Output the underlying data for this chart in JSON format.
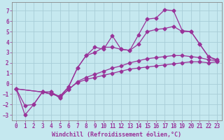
{
  "xlabel": "Windchill (Refroidissement éolien,°C)",
  "xlim": [
    -0.5,
    23.5
  ],
  "ylim": [
    -3.5,
    7.8
  ],
  "xticks": [
    0,
    1,
    2,
    3,
    4,
    5,
    6,
    7,
    8,
    9,
    10,
    11,
    12,
    13,
    14,
    15,
    16,
    17,
    18,
    19,
    20,
    21,
    22,
    23
  ],
  "yticks": [
    -3,
    -2,
    -1,
    0,
    1,
    2,
    3,
    4,
    5,
    6,
    7
  ],
  "bg_color": "#c5e8ef",
  "line_color": "#993399",
  "grid_color": "#a8cdd8",
  "lines": [
    {
      "x": [
        0,
        1,
        2,
        3,
        4,
        5,
        6,
        7,
        8,
        9,
        10,
        11,
        12,
        13,
        14,
        15,
        16,
        17,
        18,
        19,
        20,
        21,
        22,
        23
      ],
      "y": [
        -0.5,
        -3.0,
        -2.0,
        -0.8,
        -0.8,
        -1.4,
        -0.5,
        0.1,
        0.4,
        0.6,
        0.8,
        1.0,
        1.2,
        1.4,
        1.5,
        1.6,
        1.7,
        1.8,
        1.9,
        2.0,
        2.1,
        2.1,
        2.0,
        2.1
      ]
    },
    {
      "x": [
        0,
        1,
        2,
        3,
        4,
        5,
        6,
        7,
        8,
        9,
        10,
        11,
        12,
        13,
        14,
        15,
        16,
        17,
        18,
        19,
        20,
        21,
        22,
        23
      ],
      "y": [
        -0.5,
        -2.1,
        -2.0,
        -0.8,
        -1.0,
        -1.2,
        -0.6,
        0.2,
        0.6,
        0.9,
        1.2,
        1.5,
        1.7,
        2.0,
        2.2,
        2.4,
        2.5,
        2.6,
        2.7,
        2.7,
        2.6,
        2.5,
        2.3,
        2.2
      ]
    },
    {
      "x": [
        0,
        3,
        4,
        5,
        6,
        7,
        8,
        9,
        10,
        11,
        12,
        13,
        14,
        15,
        16,
        17,
        18,
        19,
        20,
        21,
        22,
        23
      ],
      "y": [
        -0.5,
        -0.8,
        -1.0,
        -1.2,
        -0.3,
        1.5,
        2.7,
        3.0,
        3.5,
        3.5,
        3.3,
        3.2,
        3.8,
        5.0,
        5.2,
        5.3,
        5.5,
        5.0,
        5.0,
        3.8,
        2.6,
        2.3
      ]
    },
    {
      "x": [
        0,
        3,
        4,
        5,
        6,
        7,
        8,
        9,
        10,
        11,
        12,
        13,
        14,
        15,
        16,
        17,
        18,
        19,
        20,
        21,
        22,
        23
      ],
      "y": [
        -0.5,
        -0.8,
        -0.8,
        -1.3,
        -0.3,
        1.5,
        2.7,
        3.5,
        3.3,
        4.6,
        3.3,
        3.2,
        4.7,
        6.2,
        6.3,
        7.1,
        7.0,
        5.1,
        5.0,
        3.8,
        2.6,
        2.2
      ]
    }
  ]
}
